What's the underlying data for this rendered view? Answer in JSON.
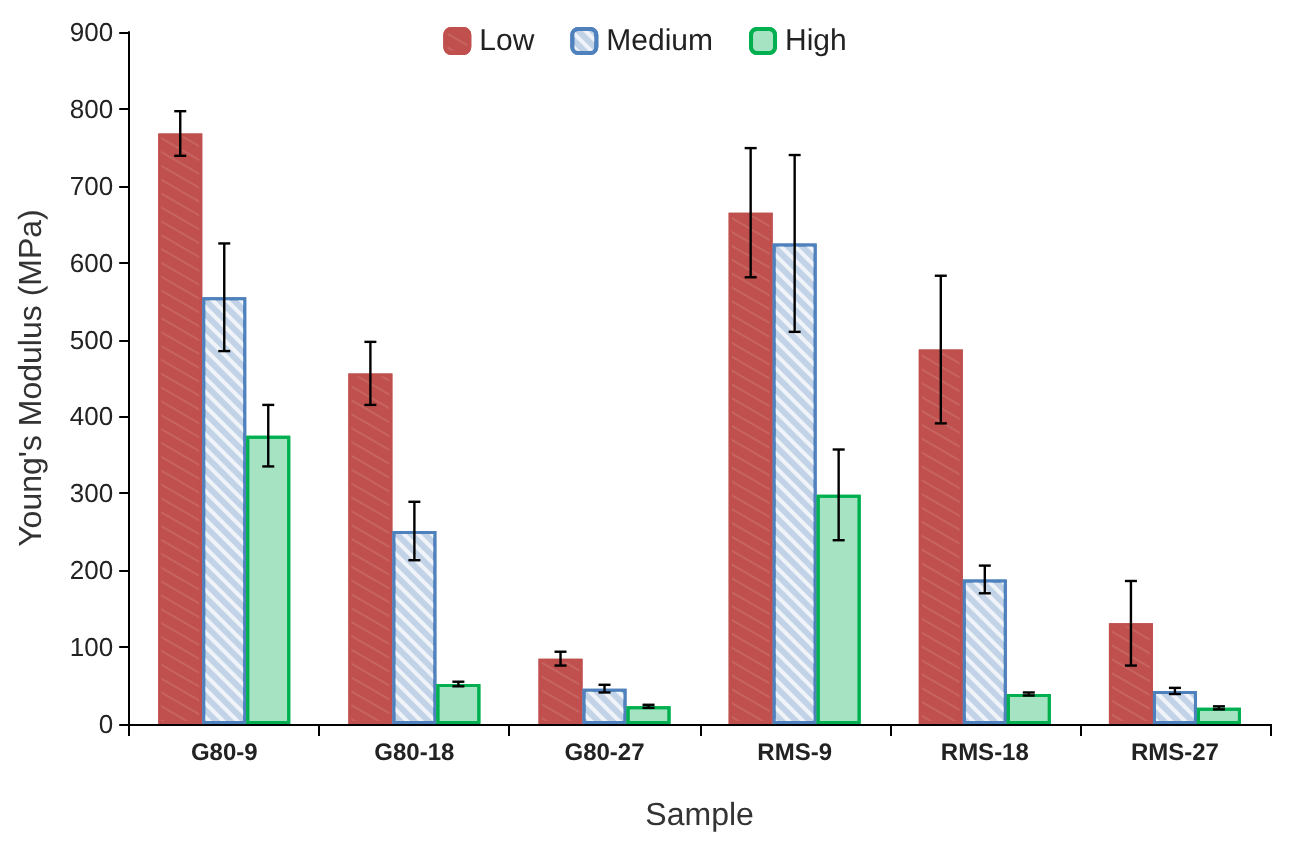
{
  "chart_data": {
    "type": "bar",
    "xlabel": "Sample",
    "ylabel": "Young's Modulus (MPa)",
    "categories": [
      "G80-9",
      "G80-18",
      "G80-27",
      "RMS-9",
      "RMS-18",
      "RMS-27"
    ],
    "series": [
      {
        "name": "Low",
        "color": "#c0504d",
        "values": [
          768,
          456,
          85,
          665,
          487,
          131
        ],
        "errors": [
          29,
          41,
          9,
          84,
          96,
          55
        ]
      },
      {
        "name": "Medium",
        "color": "#4f81bd",
        "values": [
          555,
          251,
          46,
          625,
          188,
          43
        ],
        "errors": [
          70,
          38,
          5,
          115,
          18,
          4
        ]
      },
      {
        "name": "High",
        "color": "#00b050",
        "values": [
          375,
          52,
          23,
          298,
          39,
          21
        ],
        "errors": [
          40,
          3,
          2,
          59,
          2,
          2
        ]
      }
    ],
    "ylim": [
      0,
      900
    ],
    "yticks": [
      0,
      100,
      200,
      300,
      400,
      500,
      600,
      700,
      800,
      900
    ],
    "grid": false,
    "legend": "top"
  }
}
